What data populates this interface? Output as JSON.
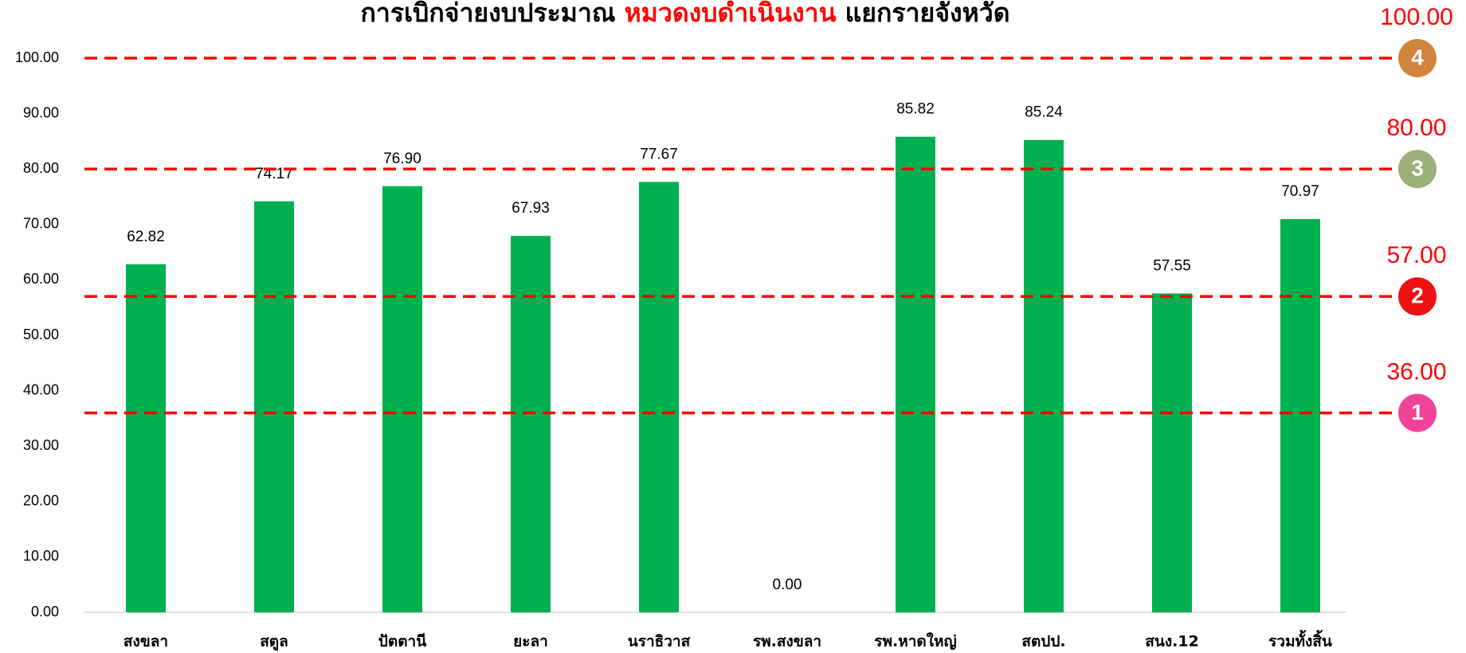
{
  "chart_data": {
    "type": "bar",
    "title_parts": [
      {
        "text": "การเบิกจ่ายงบประมาณ ",
        "color": "#000000"
      },
      {
        "text": "หมวดงบดำเนินงาน",
        "color": "#ff0000"
      },
      {
        "text": " แยกรายจังหวัด",
        "color": "#000000"
      }
    ],
    "categories": [
      "สงขลา",
      "สตูล",
      "ปัตตานี",
      "ยะลา",
      "นราธิวาส",
      "รพ.สงขลา",
      "รพ.หาดใหญ่",
      "สตปป.",
      "สนง.12",
      "รวมทั้งสิ้น"
    ],
    "values": [
      62.82,
      74.17,
      76.9,
      67.93,
      77.67,
      0,
      85.82,
      85.24,
      57.55,
      70.97
    ],
    "value_labels": [
      "62.82",
      "74.17",
      "76.90",
      "67.93",
      "77.67",
      "0.00",
      "85.82",
      "85.24",
      "57.55",
      "70.97"
    ],
    "color": "#00b050",
    "ylim": [
      0,
      100
    ],
    "yticks": [
      {
        "value": 0,
        "label": "0.00"
      },
      {
        "value": 10,
        "label": "10.00"
      },
      {
        "value": 20,
        "label": "20.00"
      },
      {
        "value": 30,
        "label": "30.00"
      },
      {
        "value": 40,
        "label": "40.00"
      },
      {
        "value": 50,
        "label": "50.00"
      },
      {
        "value": 60,
        "label": "60.00"
      },
      {
        "value": 70,
        "label": "70.00"
      },
      {
        "value": 80,
        "label": "80.00"
      },
      {
        "value": 90,
        "label": "90.00"
      },
      {
        "value": 100,
        "label": "100.00"
      }
    ],
    "reference_lines": [
      {
        "value": 36,
        "label": "36.00",
        "marker": "1",
        "marker_color": "#f0449a"
      },
      {
        "value": 57,
        "label": "57.00",
        "marker": "2",
        "marker_color": "#ee1111"
      },
      {
        "value": 80,
        "label": "80.00",
        "marker": "3",
        "marker_color": "#9bb07a"
      },
      {
        "value": 100,
        "label": "100.00",
        "marker": "4",
        "marker_color": "#d0843c"
      }
    ],
    "reference_line_color": "#ff0000"
  }
}
